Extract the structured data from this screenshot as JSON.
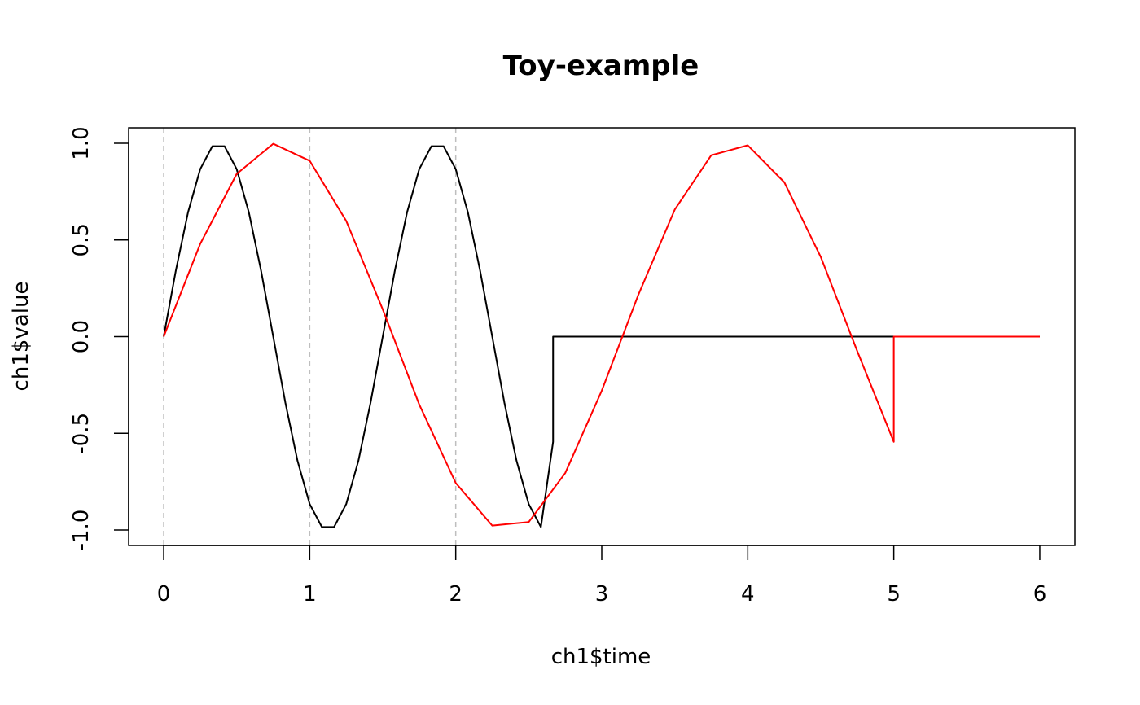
{
  "chart_data": {
    "type": "line",
    "title": "Toy-example",
    "xlabel": "ch1$time",
    "ylabel": "ch1$value",
    "xlim": [
      -0.24,
      6.24
    ],
    "ylim": [
      -1.08,
      1.08
    ],
    "x_ticks": [
      0,
      1,
      2,
      3,
      4,
      5,
      6
    ],
    "y_ticks": [
      -1.0,
      -0.5,
      0.0,
      0.5,
      1.0
    ],
    "x_tick_labels": [
      "0",
      "1",
      "2",
      "3",
      "4",
      "5",
      "6"
    ],
    "y_tick_labels": [
      "-1.0",
      "-0.5",
      "0.0",
      "0.5",
      "1.0"
    ],
    "vlines": [
      0,
      1,
      2
    ],
    "vline_color": "#bebebe",
    "grid": false,
    "legend": "none",
    "series": [
      {
        "color": "#000000",
        "x": [
          0,
          0.0833,
          0.1667,
          0.25,
          0.3333,
          0.4167,
          0.5,
          0.5833,
          0.6667,
          0.75,
          0.8333,
          0.9167,
          1.0,
          1.0833,
          1.1667,
          1.25,
          1.3333,
          1.4167,
          1.5,
          1.5833,
          1.6667,
          1.75,
          1.8333,
          1.9167,
          2.0,
          2.0833,
          2.1667,
          2.25,
          2.3333,
          2.4167,
          2.5,
          2.5833,
          2.6667,
          2.6667,
          3.0,
          4.0,
          5.0,
          6.0
        ],
        "y": [
          0,
          0.342,
          0.6428,
          0.866,
          0.9848,
          0.9848,
          0.866,
          0.6428,
          0.342,
          0.0,
          -0.342,
          -0.6428,
          -0.866,
          -0.9848,
          -0.9848,
          -0.866,
          -0.6428,
          -0.342,
          0.0,
          0.342,
          0.6428,
          0.866,
          0.9848,
          0.9848,
          0.866,
          0.6428,
          0.342,
          0.0,
          -0.342,
          -0.6428,
          -0.866,
          -0.9848,
          -0.544,
          0.0,
          0.0,
          0.0,
          0.0,
          0.0
        ]
      },
      {
        "color": "#ff0000",
        "x": [
          0,
          0.25,
          0.5,
          0.75,
          1.0,
          1.25,
          1.5,
          1.75,
          2.0,
          2.25,
          2.5,
          2.75,
          3.0,
          3.25,
          3.5,
          3.75,
          4.0,
          4.25,
          4.5,
          4.75,
          5.0,
          5.0,
          5.5,
          6.0
        ],
        "y": [
          0,
          0.4794,
          0.8415,
          0.9975,
          0.9093,
          0.5985,
          0.1411,
          -0.3508,
          -0.7568,
          -0.9775,
          -0.9589,
          -0.7055,
          -0.2794,
          0.2151,
          0.657,
          0.938,
          0.9894,
          0.7985,
          0.4121,
          -0.0752,
          -0.544,
          0.0,
          0.0,
          0.0
        ]
      }
    ]
  }
}
